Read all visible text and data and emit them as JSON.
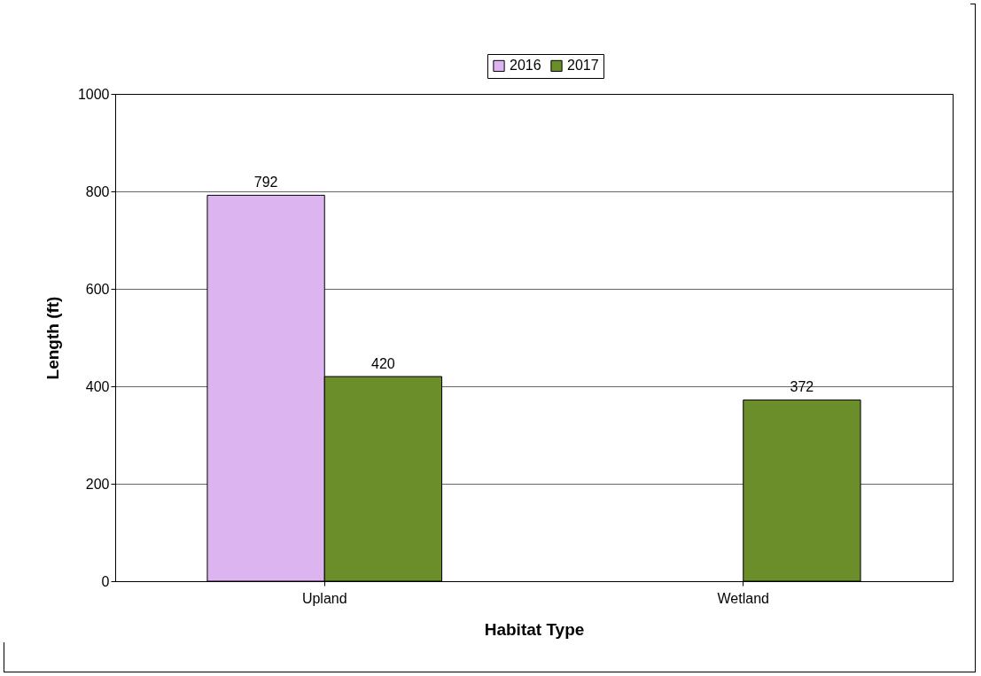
{
  "chart_data": {
    "type": "bar",
    "xlabel": "Habitat Type",
    "ylabel": "Length (ft)",
    "categories": [
      "Upland",
      "Wetland"
    ],
    "series": [
      {
        "name": "2016",
        "color": "#dcb4f0",
        "values": [
          792,
          null
        ]
      },
      {
        "name": "2017",
        "color": "#6b8e2a",
        "values": [
          420,
          372
        ]
      }
    ],
    "ylim": [
      0,
      1000
    ],
    "yticks": [
      0,
      200,
      400,
      600,
      800,
      1000
    ],
    "grid": "y",
    "legend": "top",
    "data_labels": true
  }
}
